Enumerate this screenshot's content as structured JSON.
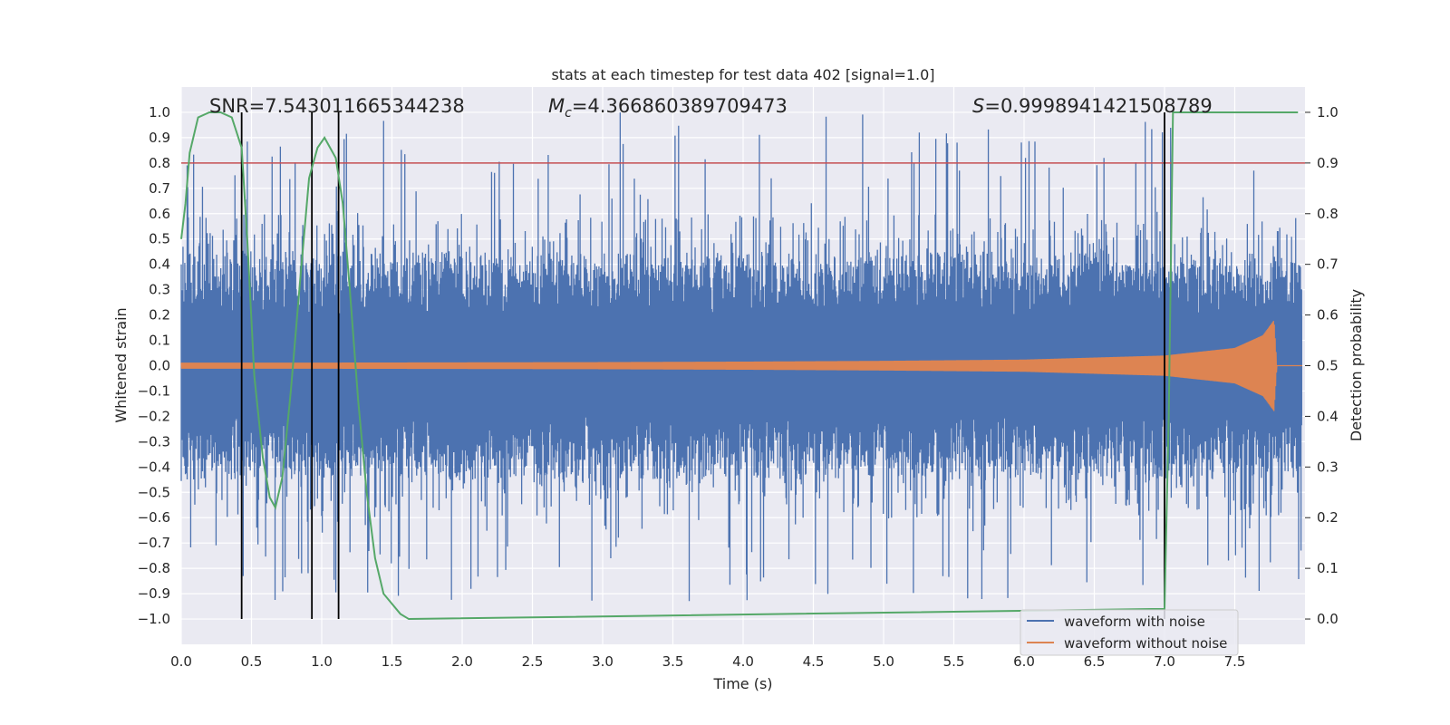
{
  "chart_data": {
    "type": "line",
    "title": "stats at each timestep for test data 402 [signal=1.0]",
    "xlabel": "Time (s)",
    "ylabel_left": "Whitened strain",
    "ylabel_right": "Detection probability",
    "xlim": [
      0.0,
      8.0
    ],
    "ylim_left": [
      -1.1,
      1.1
    ],
    "ylim_right": [
      -0.05,
      1.05
    ],
    "x_ticks": [
      "0.0",
      "0.5",
      "1.0",
      "1.5",
      "2.0",
      "2.5",
      "3.0",
      "3.5",
      "4.0",
      "4.5",
      "5.0",
      "5.5",
      "6.0",
      "6.5",
      "7.0",
      "7.5"
    ],
    "y_ticks_left": [
      "1.0",
      "0.9",
      "0.8",
      "0.7",
      "0.6",
      "0.5",
      "0.4",
      "0.3",
      "0.2",
      "0.1",
      "0.0",
      "−0.1",
      "−0.2",
      "−0.3",
      "−0.4",
      "−0.5",
      "−0.6",
      "−0.7",
      "−0.8",
      "−0.9",
      "−1.0"
    ],
    "y_ticks_right": [
      "1.0",
      "0.9",
      "0.8",
      "0.7",
      "0.6",
      "0.5",
      "0.4",
      "0.3",
      "0.2",
      "0.1",
      "0.0"
    ],
    "grid": true,
    "legend_position": "lower-right",
    "annotations": {
      "snr": "SNR=7.543011665344238",
      "mc_symbol": "M",
      "mc_sub": "c",
      "mc_value": "=4.366860389709473",
      "s_symbol": "S",
      "s_value": "=0.9998941421508789"
    },
    "threshold": {
      "probability": 0.9,
      "color": "#c44e52"
    },
    "detection_markers_time_s": [
      0.43,
      0.93,
      1.12,
      7.0
    ],
    "series": [
      {
        "name": "waveform with noise",
        "axis": "left",
        "color": "#4c72b0",
        "description_stats": {
          "band_low": -0.2,
          "band_high": 0.2,
          "max": 1.0,
          "min": -0.93
        }
      },
      {
        "name": "waveform without noise",
        "axis": "left",
        "color": "#dd8452",
        "envelope": {
          "x": [
            0.0,
            1.0,
            2.0,
            3.0,
            4.0,
            5.0,
            6.0,
            7.0,
            7.5,
            7.7,
            7.78,
            7.8
          ],
          "amp": [
            0.012,
            0.012,
            0.013,
            0.014,
            0.016,
            0.019,
            0.024,
            0.04,
            0.07,
            0.12,
            0.18,
            0.0
          ]
        }
      },
      {
        "axis": "right",
        "color": "#55a868",
        "x": [
          0.0,
          0.03,
          0.06,
          0.12,
          0.2,
          0.28,
          0.36,
          0.43,
          0.47,
          0.52,
          0.58,
          0.63,
          0.67,
          0.72,
          0.78,
          0.85,
          0.91,
          0.97,
          1.02,
          1.06,
          1.1,
          1.15,
          1.2,
          1.26,
          1.32,
          1.38,
          1.44,
          1.5,
          1.56,
          1.62,
          7.0,
          7.03,
          7.06,
          7.1,
          7.95
        ],
        "y": [
          0.75,
          0.82,
          0.92,
          0.99,
          1.0,
          1.0,
          0.99,
          0.93,
          0.75,
          0.48,
          0.32,
          0.24,
          0.22,
          0.28,
          0.45,
          0.68,
          0.87,
          0.93,
          0.95,
          0.93,
          0.91,
          0.82,
          0.65,
          0.43,
          0.25,
          0.12,
          0.05,
          0.03,
          0.01,
          0.0,
          0.02,
          0.4,
          1.0,
          1.0,
          1.0
        ]
      }
    ]
  }
}
